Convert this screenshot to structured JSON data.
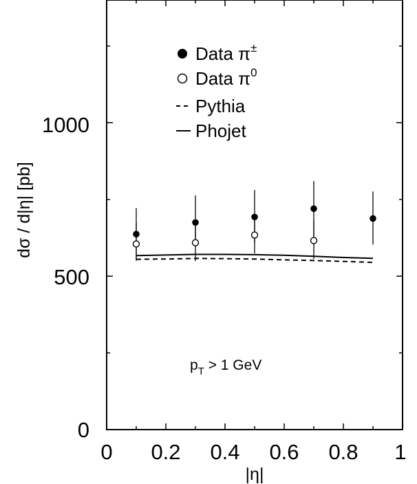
{
  "chart_data": {
    "type": "scatter",
    "xlabel": "|η|",
    "ylabel": "dσ / d|η| [pb]",
    "xlim": [
      0,
      1
    ],
    "ylim": [
      0,
      1400
    ],
    "x_ticks": [
      "0",
      "0.2",
      "0.4",
      "0.6",
      "0.8",
      "1"
    ],
    "y_ticks": [
      "0",
      "500",
      "1000"
    ],
    "annotation": {
      "main": "p",
      "sub": "T",
      "rest": " > 1 GeV"
    },
    "legend_position": "top-left",
    "series": [
      {
        "name": "Data π±",
        "label_main": "Data π",
        "label_sup": "±",
        "kind": "points",
        "marker": "filled-circle",
        "color": "#000000",
        "x": [
          0.1,
          0.3,
          0.5,
          0.7,
          0.9
        ],
        "y": [
          637,
          675,
          693,
          720,
          688
        ],
        "yerr_low": [
          80,
          80,
          85,
          90,
          85
        ],
        "yerr_high": [
          85,
          88,
          88,
          90,
          88
        ]
      },
      {
        "name": "Data π0",
        "label_main": "Data π",
        "label_sup": "0",
        "kind": "points",
        "marker": "open-circle",
        "color": "#000000",
        "x": [
          0.1,
          0.3,
          0.5,
          0.7
        ],
        "y": [
          605,
          609,
          634,
          616
        ],
        "yerr_low": [
          55,
          60,
          60,
          60
        ],
        "yerr_high": [
          70,
          70,
          60,
          65
        ]
      },
      {
        "name": "Pythia",
        "label_main": "Pythia",
        "kind": "line",
        "style": "dashed",
        "color": "#000000",
        "x": [
          0.1,
          0.2,
          0.3,
          0.4,
          0.5,
          0.6,
          0.7,
          0.8,
          0.9
        ],
        "y": [
          555,
          556,
          558,
          557,
          556,
          553,
          551,
          548,
          545
        ]
      },
      {
        "name": "Phojet",
        "label_main": "Phojet",
        "kind": "line",
        "style": "solid",
        "color": "#000000",
        "x": [
          0.1,
          0.2,
          0.3,
          0.4,
          0.5,
          0.6,
          0.7,
          0.8,
          0.9
        ],
        "y": [
          567,
          569,
          571,
          571,
          570,
          568,
          565,
          561,
          558
        ]
      }
    ]
  }
}
